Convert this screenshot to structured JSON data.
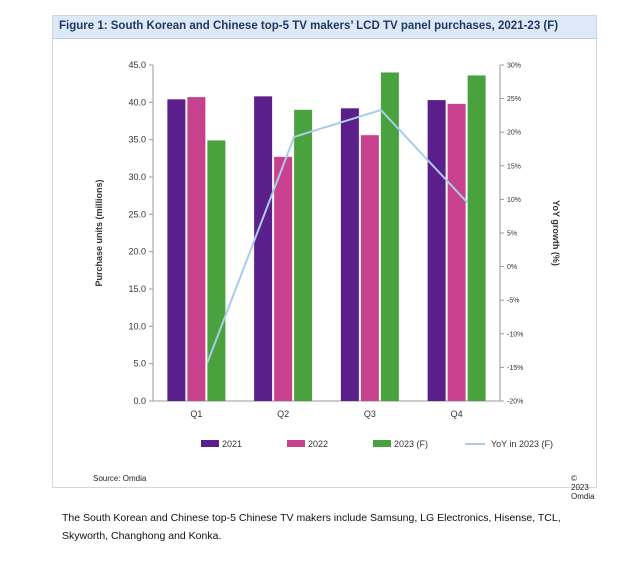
{
  "figure": {
    "title": "Figure 1: South Korean and Chinese top-5 TV makers’ LCD TV panel purchases, 2021-23 (F)",
    "source": "Source: Omdia",
    "copyright": "© 2023 Omdia"
  },
  "footnote": "The South Korean and Chinese top-5 Chinese TV makers include Samsung, LG Electronics, Hisense, TCL, Skyworth, Changhong and Konka.",
  "chart_data": {
    "type": "bar",
    "categories": [
      "Q1",
      "Q2",
      "Q3",
      "Q4"
    ],
    "series": [
      {
        "name": "2021",
        "type": "bar",
        "axis": "left",
        "color": "#5b1f8c",
        "values": [
          40.4,
          40.8,
          39.2,
          40.3
        ]
      },
      {
        "name": "2022",
        "type": "bar",
        "axis": "left",
        "color": "#c8418f",
        "values": [
          40.7,
          32.7,
          35.6,
          39.8
        ]
      },
      {
        "name": "2023 (F)",
        "type": "bar",
        "axis": "left",
        "color": "#4aa23e",
        "values": [
          34.9,
          39.0,
          44.0,
          43.6
        ]
      },
      {
        "name": "YoY in 2023 (F)",
        "type": "line",
        "axis": "right",
        "color": "#a9cde8",
        "values": [
          -14.3,
          19.3,
          23.3,
          9.5
        ]
      }
    ],
    "ylabel": "Purchase units (millions)",
    "ylim": [
      0,
      45
    ],
    "yticks": [
      "0.0",
      "5.0",
      "10.0",
      "15.0",
      "20.0",
      "25.0",
      "30.0",
      "35.0",
      "40.0",
      "45.0"
    ],
    "y2label": "YoY growth (%)",
    "y2lim": [
      -20,
      30
    ],
    "y2ticks": [
      "-20%",
      "-15%",
      "-10%",
      "-5%",
      "0%",
      "5%",
      "10%",
      "15%",
      "20%",
      "25%",
      "30%"
    ],
    "grid": false,
    "legend": "bottom"
  }
}
